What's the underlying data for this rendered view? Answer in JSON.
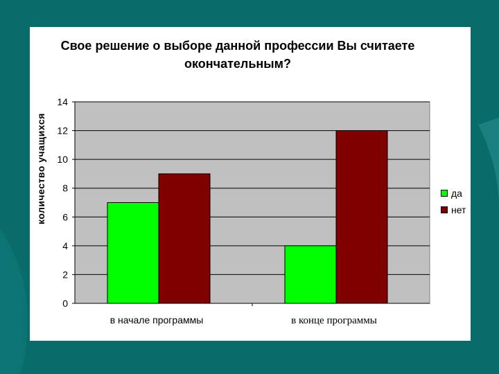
{
  "chart_data": {
    "type": "bar",
    "title": "Свое решение о выборе данной профессии Вы считаете окончательным?",
    "title_lines": [
      "Свое решение о выборе данной профессии Вы считаете",
      "окончательным?"
    ],
    "ylabel": "количество учащихся",
    "xlabel": "",
    "ylim": [
      0,
      14
    ],
    "yticks": [
      0,
      2,
      4,
      6,
      8,
      10,
      12,
      14
    ],
    "grid": true,
    "legend_position": "right",
    "categories": [
      "в начале программы",
      "в конце программы"
    ],
    "series": [
      {
        "name": "да",
        "values": [
          7,
          4
        ],
        "color": "#00ff00"
      },
      {
        "name": "нет",
        "values": [
          9,
          12
        ],
        "color": "#800000"
      }
    ]
  },
  "colors": {
    "background": "#0a6b6b",
    "plot_area": "#c0c0c0",
    "panel": "#ffffff"
  }
}
